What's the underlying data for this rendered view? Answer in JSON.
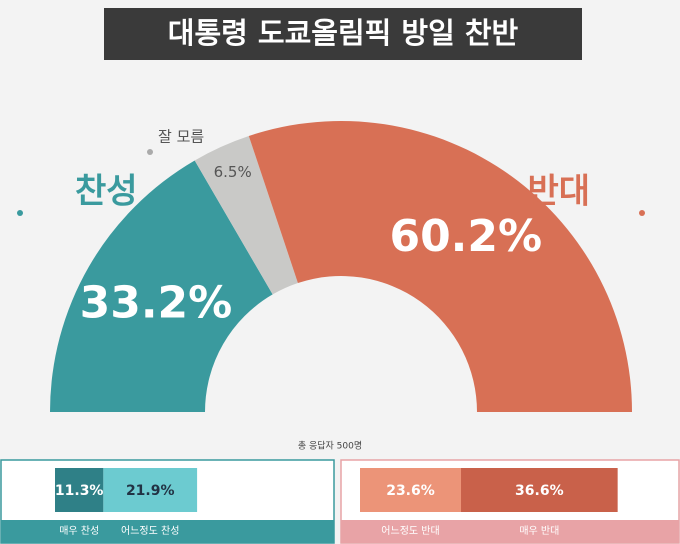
{
  "chart_data": [
    {
      "type": "semi-donut",
      "title": "대통령 도쿄올림픽 방일 찬반",
      "categories": [
        "찬성",
        "잘 모름",
        "반대"
      ],
      "values": [
        33.2,
        6.5,
        60.2
      ],
      "value_labels": [
        "33.2%",
        "6.5%",
        "60.2%"
      ],
      "colors": [
        "#3a9a9e",
        "#c9c9c7",
        "#d87055"
      ],
      "note": "총 응답자 500명"
    },
    {
      "type": "stacked-bar",
      "series": [
        {
          "name": "매우 찬성",
          "color": "#2f8087",
          "values": [
            11.3
          ],
          "value_labels": [
            "11.3%"
          ]
        },
        {
          "name": "어느정도 찬성",
          "color": "#6ccbd0",
          "values": [
            21.9
          ],
          "value_labels": [
            "21.9%"
          ]
        }
      ]
    },
    {
      "type": "stacked-bar",
      "series": [
        {
          "name": "어느정도 반대",
          "color": "#ec9478",
          "values": [
            23.6
          ],
          "value_labels": [
            "23.6%"
          ]
        },
        {
          "name": "매우 반대",
          "color": "#c9614a",
          "values": [
            36.6
          ],
          "value_labels": [
            "36.6%"
          ]
        }
      ]
    }
  ]
}
